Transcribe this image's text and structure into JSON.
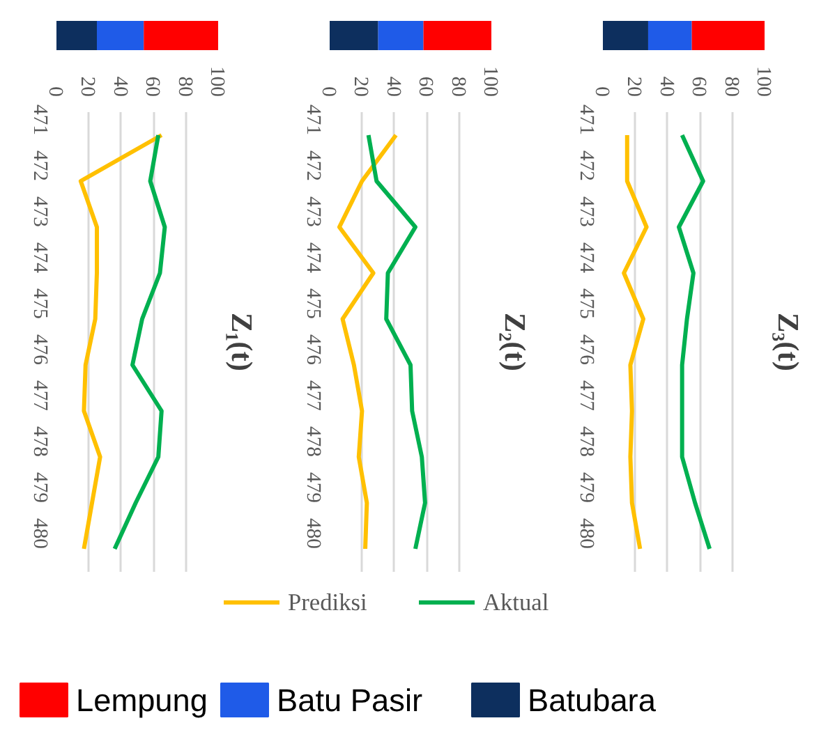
{
  "chart_data": [
    {
      "type": "bar",
      "orientation": "horizontal",
      "stacked": true,
      "categories": [
        null
      ],
      "xlim": [
        0,
        100
      ],
      "xticks": [
        0,
        20,
        40,
        60,
        80,
        100
      ],
      "tick_labels": false,
      "legend": "bottom",
      "series": [
        {
          "name": "Batubara",
          "color": "#0d2f5e",
          "values": [
            25
          ]
        },
        {
          "name": "Batu Pasir",
          "color": "#1f5be8",
          "values": [
            29
          ]
        },
        {
          "name": "Lempung",
          "color": "#ff0000",
          "values": [
            46
          ]
        }
      ]
    },
    {
      "type": "line",
      "title": "Z₁(t)",
      "orientation": "horizontal",
      "categories": [
        "471",
        "472",
        "473",
        "474",
        "475",
        "476",
        "477",
        "478",
        "479",
        "480"
      ],
      "series": [
        {
          "color": "#ffc000",
          "values": [
            65,
            15,
            25,
            25,
            24,
            18,
            17,
            27,
            22,
            17
          ]
        },
        {
          "color": "#00b050",
          "values": [
            63,
            58,
            67,
            64,
            53,
            47,
            65,
            63,
            49,
            36
          ]
        }
      ],
      "xlim": [
        0,
        100
      ],
      "xticks": [
        0,
        20,
        40,
        60,
        80,
        100
      ],
      "grid": "x"
    },
    {
      "type": "bar",
      "orientation": "horizontal",
      "stacked": true,
      "categories": [
        null
      ],
      "xlim": [
        0,
        100
      ],
      "xticks": [
        0,
        20,
        40,
        60,
        80,
        100
      ],
      "tick_labels": false,
      "series": [
        {
          "color": "#0d2f5e",
          "values": [
            30
          ]
        },
        {
          "color": "#1f5be8",
          "values": [
            28
          ]
        },
        {
          "color": "#ff0000",
          "values": [
            42
          ]
        }
      ]
    },
    {
      "type": "line",
      "title": "Z₂(t)",
      "orientation": "horizontal",
      "categories": [
        "471",
        "472",
        "473",
        "474",
        "475",
        "476",
        "477",
        "478",
        "479",
        "480"
      ],
      "series": [
        {
          "name": "Prediksi",
          "color": "#ffc000",
          "values": [
            41,
            20,
            6,
            27,
            8,
            15,
            20,
            18,
            23,
            22
          ]
        },
        {
          "name": "Aktual",
          "color": "#00b050",
          "values": [
            24,
            29,
            53,
            36,
            35,
            50,
            51,
            57,
            59,
            53
          ]
        }
      ],
      "xlim": [
        0,
        100
      ],
      "xticks": [
        0,
        20,
        40,
        60,
        80,
        100
      ],
      "grid": "x",
      "legend": "bottom"
    },
    {
      "type": "bar",
      "orientation": "horizontal",
      "stacked": true,
      "categories": [
        null
      ],
      "xlim": [
        0,
        100
      ],
      "xticks": [
        0,
        20,
        40,
        60,
        80,
        100
      ],
      "tick_labels": false,
      "series": [
        {
          "color": "#0d2f5e",
          "values": [
            28
          ]
        },
        {
          "color": "#1f5be8",
          "values": [
            27
          ]
        },
        {
          "color": "#ff0000",
          "values": [
            45
          ]
        }
      ]
    },
    {
      "type": "line",
      "title": "Z₃(t)",
      "orientation": "horizontal",
      "categories": [
        "471",
        "472",
        "473",
        "474",
        "475",
        "476",
        "477",
        "478",
        "479",
        "480"
      ],
      "series": [
        {
          "color": "#ffc000",
          "values": [
            15,
            15,
            27,
            13,
            25,
            17,
            18,
            17,
            18,
            23
          ]
        },
        {
          "color": "#00b050",
          "values": [
            49,
            62,
            47,
            56,
            52,
            49,
            49,
            49,
            57,
            66
          ]
        }
      ],
      "xlim": [
        0,
        100
      ],
      "xticks": [
        0,
        20,
        40,
        60,
        80,
        100
      ],
      "grid": "x"
    }
  ]
}
